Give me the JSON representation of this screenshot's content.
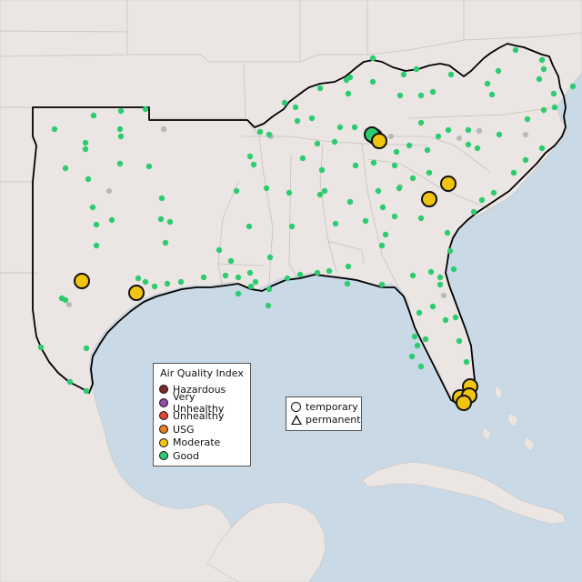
{
  "legend": {
    "title": "Air Quality Index",
    "categories": [
      {
        "label": "Hazardous",
        "color": "#7e2a2a"
      },
      {
        "label": "Very Unhealthy",
        "color": "#8e4fa8"
      },
      {
        "label": "Unhealthy",
        "color": "#e0452f"
      },
      {
        "label": "USG",
        "color": "#e67e22"
      },
      {
        "label": "Moderate",
        "color": "#f1c40f"
      },
      {
        "label": "Good",
        "color": "#2ecc71"
      }
    ]
  },
  "monitor_legend": {
    "temporary": "temporary",
    "permanent": "permanent"
  },
  "colors": {
    "water": "#c9d9e6",
    "land": "#ebe6e3",
    "inactive_monitor": "#b8b8b8"
  }
}
